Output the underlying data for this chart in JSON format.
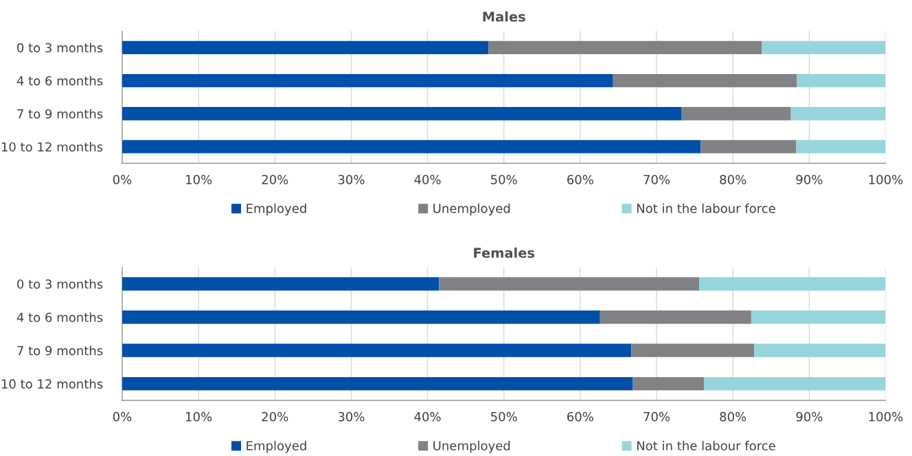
{
  "chart_data": [
    {
      "type": "bar",
      "title": "Males",
      "orientation": "horizontal",
      "stacked": true,
      "categories": [
        "0 to 3 months",
        "4 to 6 months",
        "7 to 9 months",
        "10 to 12 months"
      ],
      "series": [
        {
          "name": "Employed",
          "color": "#0050aa",
          "values": [
            48.0,
            64.3,
            73.3,
            75.8
          ]
        },
        {
          "name": "Unemployed",
          "color": "#808285",
          "values": [
            35.8,
            24.1,
            14.3,
            12.5
          ]
        },
        {
          "name": "Not in the labour force",
          "color": "#96d5dc",
          "values": [
            16.2,
            11.6,
            12.4,
            11.7
          ]
        }
      ],
      "xlim": [
        0,
        100
      ],
      "xticks": [
        {
          "value": 0,
          "label": "0%"
        },
        {
          "value": 10,
          "label": "10%"
        },
        {
          "value": 20,
          "label": "20%"
        },
        {
          "value": 30,
          "label": "30%"
        },
        {
          "value": 40,
          "label": "40%"
        },
        {
          "value": 50,
          "label": "50%"
        },
        {
          "value": 60,
          "label": "60%"
        },
        {
          "value": 70,
          "label": "70%"
        },
        {
          "value": 80,
          "label": "80%"
        },
        {
          "value": 90,
          "label": "90%"
        },
        {
          "value": 100,
          "label": "100%"
        }
      ],
      "grid": "x",
      "legend": "bottom"
    },
    {
      "type": "bar",
      "title": "Females",
      "orientation": "horizontal",
      "stacked": true,
      "categories": [
        "0 to 3 months",
        "4 to 6 months",
        "7 to 9 months",
        "10 to 12 months"
      ],
      "series": [
        {
          "name": "Employed",
          "color": "#0050aa",
          "values": [
            41.5,
            62.6,
            66.7,
            66.9
          ]
        },
        {
          "name": "Unemployed",
          "color": "#808285",
          "values": [
            34.1,
            19.8,
            16.1,
            9.3
          ]
        },
        {
          "name": "Not in the labour force",
          "color": "#96d5dc",
          "values": [
            24.4,
            17.6,
            17.2,
            23.8
          ]
        }
      ],
      "xlim": [
        0,
        100
      ],
      "xticks": [
        {
          "value": 0,
          "label": "0%"
        },
        {
          "value": 10,
          "label": "10%"
        },
        {
          "value": 20,
          "label": "20%"
        },
        {
          "value": 30,
          "label": "30%"
        },
        {
          "value": 40,
          "label": "40%"
        },
        {
          "value": 50,
          "label": "50%"
        },
        {
          "value": 60,
          "label": "60%"
        },
        {
          "value": 70,
          "label": "70%"
        },
        {
          "value": 80,
          "label": "80%"
        },
        {
          "value": 90,
          "label": "90%"
        },
        {
          "value": 100,
          "label": "100%"
        }
      ],
      "grid": "x",
      "legend": "bottom"
    }
  ]
}
